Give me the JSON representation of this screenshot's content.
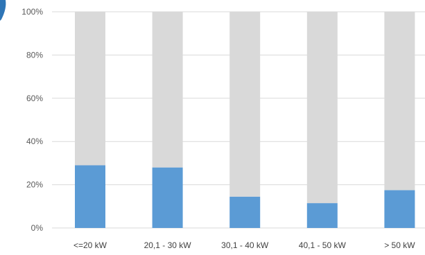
{
  "chart_data": {
    "type": "bar",
    "stacked": true,
    "categories": [
      "<=20 kW",
      "20,1 - 30 kW",
      "30,1 - 40 kW",
      "40,1 - 50 kW",
      "> 50 kW"
    ],
    "series": [
      {
        "values": [
          29,
          28,
          14.5,
          11.5,
          17.5
        ],
        "color": "#5B9BD5"
      },
      {
        "values": [
          71,
          72,
          85.5,
          88.5,
          82.5
        ],
        "color": "#D9D9D9"
      }
    ],
    "ylim": [
      0,
      100
    ],
    "yticks": [
      "0%",
      "20%",
      "40%",
      "60%",
      "80%",
      "100%"
    ],
    "grid": true,
    "gridColor": "#D9D9D9"
  }
}
